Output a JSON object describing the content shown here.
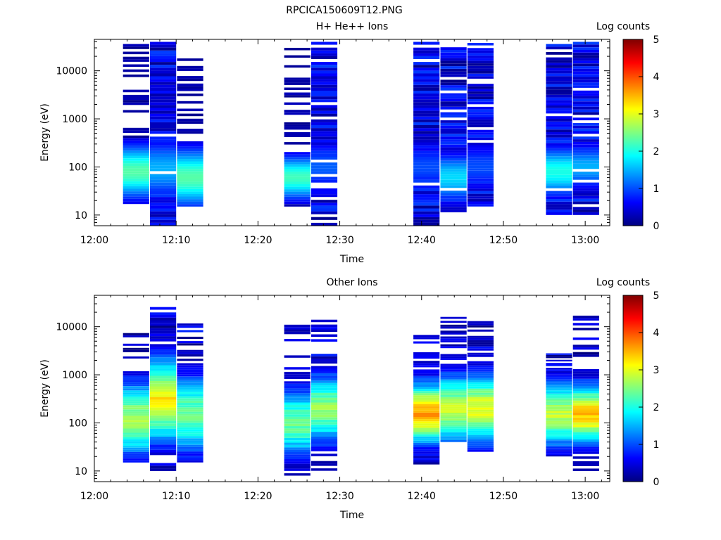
{
  "figure_title": "RPCICA150609T12.PNG",
  "chart_data": [
    {
      "type": "heatmap",
      "title": "H+ He++ Ions",
      "xlabel": "Time",
      "ylabel": "Energy (eV)",
      "xticks": [
        "12:00",
        "12:10",
        "12:20",
        "12:30",
        "12:40",
        "12:50",
        "13:00"
      ],
      "xlim": [
        "12:00",
        "13:03"
      ],
      "yscale": "log",
      "ylim": [
        6,
        45000
      ],
      "yticks": [
        "10",
        "100",
        "1000",
        "10000"
      ],
      "colorbar": {
        "label": "Log counts",
        "range": [
          0,
          5
        ],
        "ticks": [
          "0",
          "1",
          "2",
          "3",
          "4",
          "5"
        ]
      },
      "columns": [
        {
          "start": "12:03.5",
          "end": "12:06.7",
          "kind": "thin",
          "emin": 15,
          "emax": 36000,
          "peak_e": 80,
          "peak_v": 2.3,
          "width_dec": 0.55,
          "seed": 11
        },
        {
          "start": "12:06.8",
          "end": "12:10.0",
          "kind": "dense",
          "emin": 6,
          "emax": 40000,
          "peak_e": 90,
          "peak_v": 1.5,
          "width_dec": 0.6,
          "seed": 12
        },
        {
          "start": "12:10.1",
          "end": "12:13.3",
          "kind": "thin",
          "emin": 15,
          "emax": 33000,
          "peak_e": 60,
          "peak_v": 2.3,
          "width_dec": 0.6,
          "seed": 13
        },
        {
          "start": "12:23.2",
          "end": "12:26.4",
          "kind": "thin",
          "emin": 15,
          "emax": 30000,
          "peak_e": 60,
          "peak_v": 2.2,
          "width_dec": 0.45,
          "seed": 14
        },
        {
          "start": "12:26.5",
          "end": "12:29.7",
          "kind": "dense",
          "emin": 6,
          "emax": 40000,
          "peak_e": 100,
          "peak_v": 1.1,
          "width_dec": 0.5,
          "seed": 15
        },
        {
          "start": "12:39.0",
          "end": "12:42.2",
          "kind": "dense",
          "emin": 6,
          "emax": 40000,
          "peak_e": 100,
          "peak_v": 1.0,
          "width_dec": 0.5,
          "seed": 16
        },
        {
          "start": "12:42.3",
          "end": "12:45.5",
          "kind": "dense",
          "emin": 10,
          "emax": 40000,
          "peak_e": 60,
          "peak_v": 1.7,
          "width_dec": 0.5,
          "seed": 17
        },
        {
          "start": "12:45.6",
          "end": "12:48.8",
          "kind": "dense",
          "emin": 15,
          "emax": 38000,
          "peak_e": 100,
          "peak_v": 1.0,
          "width_dec": 0.5,
          "seed": 18
        },
        {
          "start": "12:55.2",
          "end": "12:58.4",
          "kind": "dense",
          "emin": 10,
          "emax": 36000,
          "peak_e": 80,
          "peak_v": 2.0,
          "width_dec": 0.5,
          "seed": 19
        },
        {
          "start": "12:58.5",
          "end": "13:01.7",
          "kind": "dense",
          "emin": 10,
          "emax": 40000,
          "peak_e": 100,
          "peak_v": 1.5,
          "width_dec": 0.45,
          "seed": 20
        }
      ]
    },
    {
      "type": "heatmap",
      "title": "Other Ions",
      "xlabel": "Time",
      "ylabel": "Energy (eV)",
      "xticks": [
        "12:00",
        "12:10",
        "12:20",
        "12:30",
        "12:40",
        "12:50",
        "13:00"
      ],
      "xlim": [
        "12:00",
        "13:03"
      ],
      "yscale": "log",
      "ylim": [
        6,
        45000
      ],
      "yticks": [
        "10",
        "100",
        "1000",
        "10000"
      ],
      "colorbar": {
        "label": "Log counts",
        "range": [
          0,
          5
        ],
        "ticks": [
          "0",
          "1",
          "2",
          "3",
          "4",
          "5"
        ]
      },
      "columns": [
        {
          "start": "12:03.5",
          "end": "12:06.7",
          "kind": "mid",
          "emin": 15,
          "emax": 10000,
          "peak_e": 120,
          "peak_v": 2.7,
          "width_dec": 0.75,
          "seed": 31
        },
        {
          "start": "12:06.8",
          "end": "12:10.0",
          "kind": "mid",
          "emin": 10,
          "emax": 33000,
          "peak_e": 300,
          "peak_v": 3.2,
          "width_dec": 0.85,
          "seed": 32
        },
        {
          "start": "12:10.1",
          "end": "12:13.3",
          "kind": "mid",
          "emin": 15,
          "emax": 13000,
          "peak_e": 150,
          "peak_v": 2.4,
          "width_dec": 0.8,
          "seed": 33
        },
        {
          "start": "12:23.2",
          "end": "12:26.4",
          "kind": "mid",
          "emin": 8,
          "emax": 11000,
          "peak_e": 100,
          "peak_v": 2.4,
          "width_dec": 0.7,
          "seed": 34
        },
        {
          "start": "12:26.5",
          "end": "12:29.7",
          "kind": "mid",
          "emin": 8,
          "emax": 14000,
          "peak_e": 200,
          "peak_v": 2.6,
          "width_dec": 0.7,
          "seed": 35
        },
        {
          "start": "12:39.0",
          "end": "12:42.2",
          "kind": "mid",
          "emin": 10,
          "emax": 7500,
          "peak_e": 160,
          "peak_v": 3.6,
          "width_dec": 0.6,
          "seed": 36
        },
        {
          "start": "12:42.3",
          "end": "12:45.5",
          "kind": "mid",
          "emin": 40,
          "emax": 16000,
          "peak_e": 200,
          "peak_v": 2.8,
          "width_dec": 0.7,
          "seed": 37
        },
        {
          "start": "12:45.6",
          "end": "12:48.8",
          "kind": "mid",
          "emin": 25,
          "emax": 16000,
          "peak_e": 200,
          "peak_v": 3.0,
          "width_dec": 0.7,
          "seed": 38
        },
        {
          "start": "12:55.2",
          "end": "12:58.4",
          "kind": "mid",
          "emin": 20,
          "emax": 2800,
          "peak_e": 150,
          "peak_v": 2.8,
          "width_dec": 0.65,
          "seed": 39
        },
        {
          "start": "12:58.5",
          "end": "13:01.7",
          "kind": "mid",
          "emin": 10,
          "emax": 17000,
          "peak_e": 150,
          "peak_v": 3.4,
          "width_dec": 0.6,
          "seed": 40
        }
      ]
    }
  ]
}
